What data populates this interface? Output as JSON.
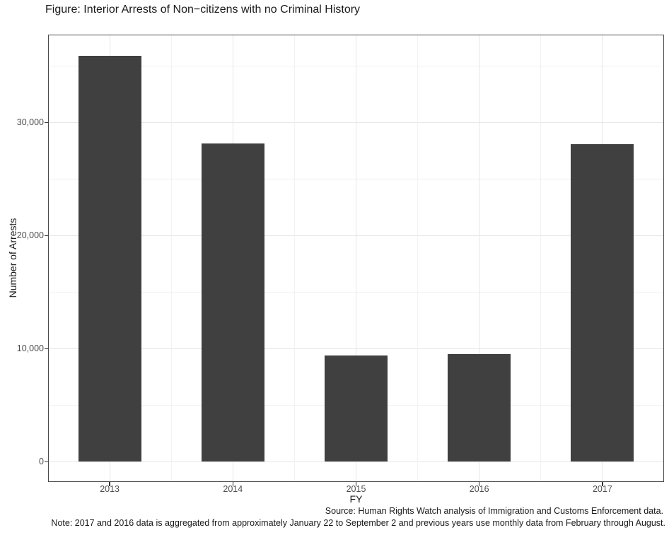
{
  "figure": {
    "source": "Source: Human Rights Watch analysis of Immigration and Customs Enforcement data.",
    "note": "Note: 2017 and 2016 data is aggregated from approximately January 22 to September 2 and previous years use monthly data from February through August."
  },
  "chart_data": {
    "type": "bar",
    "title": "Figure: Interior Arrests of Non−citizens with no Criminal History",
    "categories": [
      "2013",
      "2014",
      "2015",
      "2016",
      "2017"
    ],
    "values": [
      35900,
      28150,
      9400,
      9550,
      28100
    ],
    "xlabel": "FY",
    "ylabel": "Number of Arrests",
    "ylim": [
      -1800,
      37800
    ],
    "yticks": [
      0,
      10000,
      20000,
      30000
    ],
    "ytick_labels": [
      "0",
      "10,000",
      "20,000",
      "30,000"
    ],
    "yticks_minor": [
      5000,
      15000,
      25000,
      35000
    ],
    "grid": "major+minor",
    "legend": "none",
    "bar_color": "#404040",
    "bar_width_frac": 0.51,
    "colors": {
      "background": "#ffffff",
      "grid_major": "#e6e6e6",
      "grid_minor": "#f2f2f2",
      "panel_border": "#4a4a4a",
      "axis_text": "#4d4d4d",
      "text": "#1a1a1a",
      "tick_mark": "#333333"
    }
  }
}
